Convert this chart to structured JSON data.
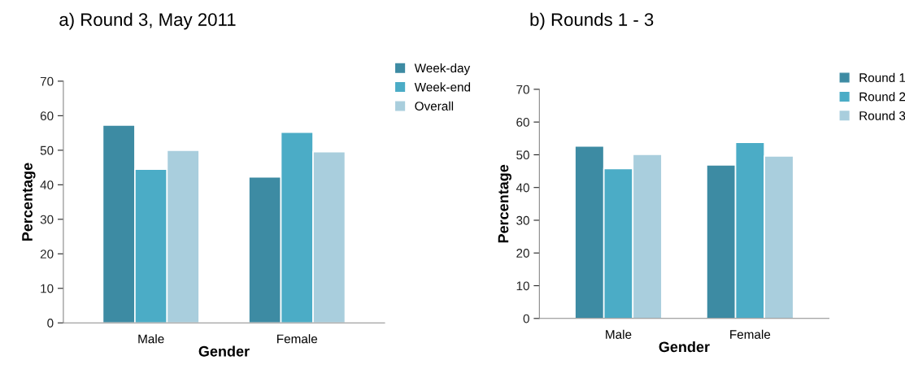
{
  "chart_data": [
    {
      "type": "bar",
      "title": "a) Round 3, May 2011",
      "xlabel": "Gender",
      "ylabel": "Percentage",
      "categories": [
        "Male",
        "Female"
      ],
      "series": [
        {
          "name": "Week-day",
          "color": "#3d8ba3",
          "values": [
            57.3,
            42.3
          ]
        },
        {
          "name": "Week-end",
          "color": "#4bacc6",
          "values": [
            44.5,
            55.2
          ]
        },
        {
          "name": "Overall",
          "color": "#a9cedd",
          "values": [
            50.0,
            49.6
          ]
        }
      ],
      "ylim": [
        0,
        70
      ],
      "yticks": [
        0,
        10,
        20,
        30,
        40,
        50,
        60,
        70
      ],
      "grid": false,
      "legend": "top right"
    },
    {
      "type": "bar",
      "title": "b) Rounds 1 - 3",
      "xlabel": "Gender",
      "ylabel": "Percentage",
      "categories": [
        "Male",
        "Female"
      ],
      "series": [
        {
          "name": "Round 1",
          "color": "#3d8ba3",
          "values": [
            52.7,
            46.9
          ]
        },
        {
          "name": "Round 2",
          "color": "#4bacc6",
          "values": [
            45.8,
            53.8
          ]
        },
        {
          "name": "Round 3",
          "color": "#a9cedd",
          "values": [
            50.1,
            49.6
          ]
        }
      ],
      "ylim": [
        0,
        70
      ],
      "yticks": [
        0,
        10,
        20,
        30,
        40,
        50,
        60,
        70
      ],
      "grid": false,
      "legend": "top right"
    }
  ]
}
